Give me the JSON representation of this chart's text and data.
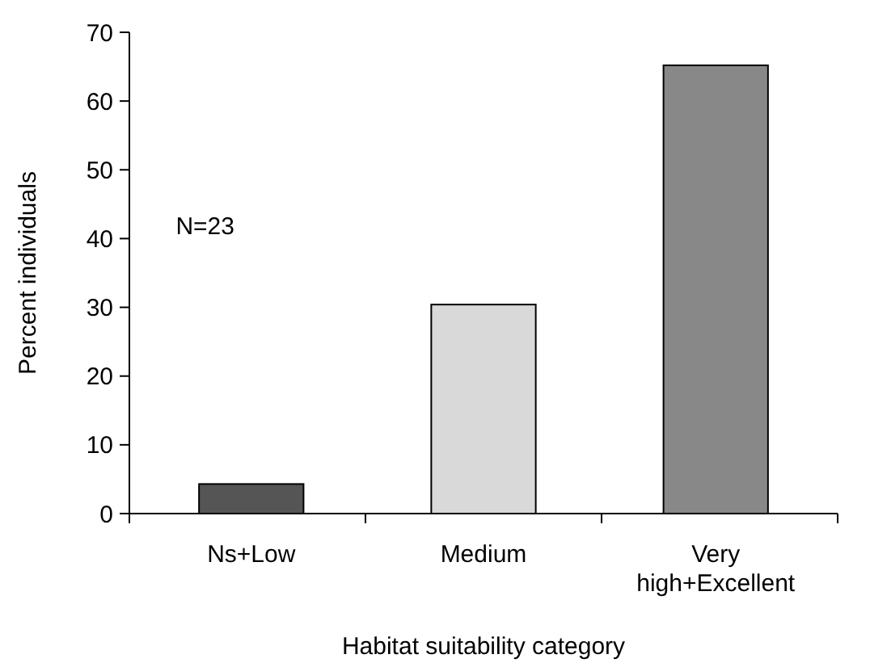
{
  "chart_data": {
    "type": "bar",
    "xlabel": "Habitat suitability category",
    "ylabel": "Percent individuals",
    "categories": [
      "Ns+Low",
      "Medium",
      "Very high+Excellent"
    ],
    "values": [
      4.3,
      30.4,
      65.2
    ],
    "colors": [
      "#555555",
      "#d9d9d9",
      "#888888"
    ],
    "ylim": [
      0,
      70
    ],
    "yticks": [
      0,
      10,
      20,
      30,
      40,
      50,
      60,
      70
    ],
    "annotations": [
      "N=23"
    ]
  }
}
